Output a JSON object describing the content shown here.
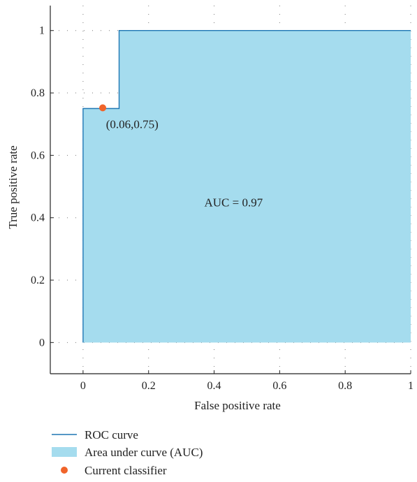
{
  "chart_data": {
    "type": "area",
    "xlabel": "False positive rate",
    "ylabel": "True positive rate",
    "xlim": [
      -0.1,
      1.0
    ],
    "ylim": [
      -0.1,
      1.08
    ],
    "x_ticks": [
      0,
      0.2,
      0.4,
      0.6,
      0.8,
      1
    ],
    "x_tick_labels": [
      "0",
      "0.2",
      "0.4",
      "0.6",
      "0.8",
      "1"
    ],
    "y_ticks": [
      0,
      0.2,
      0.4,
      0.6,
      0.8,
      1
    ],
    "y_tick_labels": [
      "0",
      "0.2",
      "0.4",
      "0.6",
      "0.8",
      "1"
    ],
    "grid": true,
    "colors": {
      "roc_line": "#1f77b4",
      "auc_fill": "#a5dcee",
      "classifier_point": "#f0642a"
    },
    "series": [
      {
        "name": "ROC curve",
        "kind": "line",
        "points": [
          [
            0,
            0
          ],
          [
            0,
            0.75
          ],
          [
            0.11,
            0.75
          ],
          [
            0.11,
            1
          ],
          [
            1,
            1
          ]
        ]
      },
      {
        "name": "Area under curve (AUC)",
        "kind": "area",
        "points": [
          [
            0,
            0
          ],
          [
            0,
            0.75
          ],
          [
            0.11,
            0.75
          ],
          [
            0.11,
            1
          ],
          [
            1,
            1
          ],
          [
            1,
            0
          ]
        ]
      },
      {
        "name": "Current classifier",
        "kind": "point",
        "points": [
          [
            0.06,
            0.75
          ]
        ]
      }
    ],
    "annotations": [
      {
        "text": "(0.06,0.75)",
        "x": 0.07,
        "y": 0.7
      },
      {
        "text": "AUC = 0.97",
        "x": 0.37,
        "y": 0.45
      }
    ],
    "legend": {
      "placement": "bottom",
      "entries": [
        "ROC curve",
        "Area under curve (AUC)",
        "Current classifier"
      ]
    }
  }
}
